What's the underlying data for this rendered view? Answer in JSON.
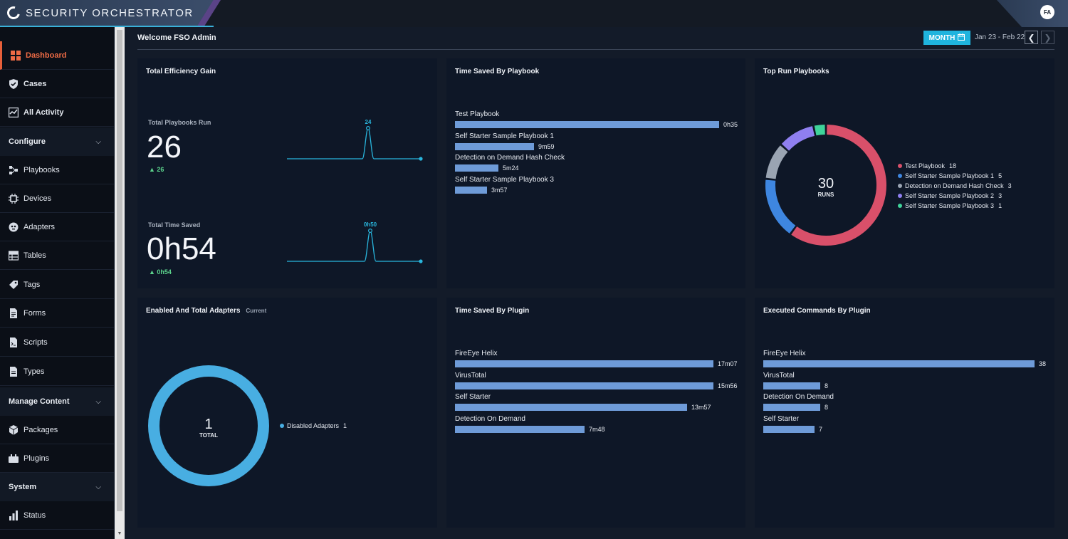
{
  "app": {
    "title": "SECURITY ORCHESTRATOR",
    "user_initials": "FA"
  },
  "sidebar": {
    "items": [
      {
        "label": "Dashboard",
        "icon": "grid-icon",
        "active": true
      },
      {
        "label": "Cases",
        "icon": "shield-check-icon"
      },
      {
        "label": "All Activity",
        "icon": "activity-icon"
      }
    ],
    "sections": [
      {
        "label": "Configure",
        "items": [
          "Playbooks",
          "Devices",
          "Adapters",
          "Tables",
          "Tags",
          "Forms",
          "Scripts",
          "Types"
        ]
      },
      {
        "label": "Manage Content",
        "items": [
          "Packages",
          "Plugins"
        ]
      },
      {
        "label": "System",
        "items": [
          "Status"
        ]
      }
    ]
  },
  "header": {
    "welcome": "Welcome FSO Admin",
    "period_button": "MONTH",
    "date_range": "Jan 23 - Feb 22"
  },
  "panels": {
    "efficiency": {
      "title": "Total Efficiency Gain",
      "runs_label": "Total Playbooks Run",
      "runs_value": "26",
      "runs_delta": "26",
      "runs_peak": "24",
      "saved_label": "Total Time Saved",
      "saved_value": "0h54",
      "saved_delta": "0h54",
      "saved_peak": "0h50"
    },
    "time_by_playbook": {
      "title": "Time Saved By Playbook",
      "rows": [
        {
          "label": "Test Playbook",
          "value": "0h35",
          "fraction": 1.0
        },
        {
          "label": "Self Starter Sample Playbook 1",
          "value": "9m59",
          "fraction": 0.3
        },
        {
          "label": "Detection on Demand Hash Check",
          "value": "5m24",
          "fraction": 0.165
        },
        {
          "label": "Self Starter Sample Playbook 3",
          "value": "3m57",
          "fraction": 0.121
        }
      ]
    },
    "top_run": {
      "title": "Top Run Playbooks",
      "total": "30",
      "total_label": "RUNS",
      "slices": [
        {
          "label": "Test Playbook",
          "count": 18,
          "color": "#d9506a"
        },
        {
          "label": "Self Starter Sample Playbook 1",
          "count": 5,
          "color": "#3e86e0"
        },
        {
          "label": "Detection on Demand Hash Check",
          "count": 3,
          "color": "#9aa4b2"
        },
        {
          "label": "Self Starter Sample Playbook 2",
          "count": 3,
          "color": "#8f7ff0"
        },
        {
          "label": "Self Starter Sample Playbook 3",
          "count": 1,
          "color": "#3fd39a"
        }
      ]
    },
    "adapters": {
      "title": "Enabled And Total Adapters",
      "subtitle": "Current",
      "total": "1",
      "total_label": "TOTAL",
      "legend": [
        {
          "label": "Disabled Adapters",
          "count": "1",
          "color": "#48aee2"
        }
      ]
    },
    "time_by_plugin": {
      "title": "Time Saved By Plugin",
      "rows": [
        {
          "label": "FireEye Helix",
          "value": "17m07",
          "fraction": 1.0
        },
        {
          "label": "VirusTotal",
          "value": "15m56",
          "fraction": 1.0
        },
        {
          "label": "Self Starter",
          "value": "13m57",
          "fraction": 0.897
        },
        {
          "label": "Detection On Demand",
          "value": "7m48",
          "fraction": 0.502
        }
      ]
    },
    "commands_by_plugin": {
      "title": "Executed Commands By Plugin",
      "rows": [
        {
          "label": "FireEye Helix",
          "value": "38",
          "fraction": 1.0
        },
        {
          "label": "VirusTotal",
          "value": "8",
          "fraction": 0.21
        },
        {
          "label": "Detection On Demand",
          "value": "8",
          "fraction": 0.21
        },
        {
          "label": "Self Starter",
          "value": "7",
          "fraction": 0.19
        }
      ]
    }
  }
}
